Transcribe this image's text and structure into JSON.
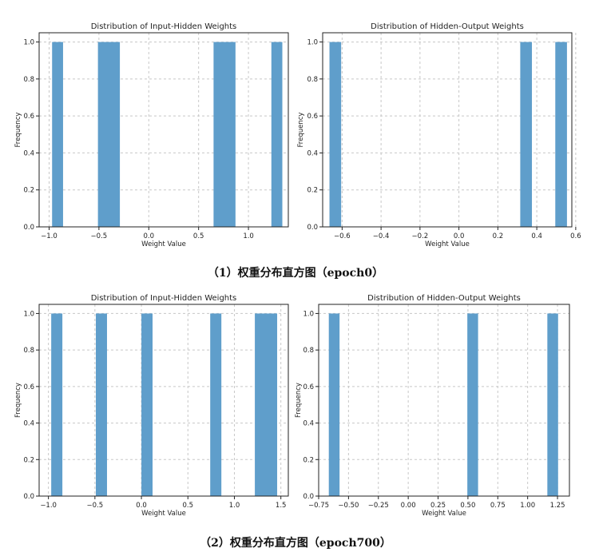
{
  "captions": {
    "top": "（1）权重分布直方图（epoch0）",
    "bottom": "（2）权重分布直方图（epoch700）"
  },
  "colors": {
    "bar": "#5f9ecb",
    "grid": "#c8c8c8",
    "axis": "#222222"
  },
  "chart_data": [
    {
      "id": "epoch0-input-hidden",
      "type": "bar",
      "title": "Distribution of Input-Hidden Weights",
      "xlabel": "Weight Value",
      "ylabel": "Frequency",
      "xlim": [
        -1.1,
        1.4
      ],
      "ylim": [
        0,
        1.05
      ],
      "xticks": [
        -1.0,
        -0.5,
        0.0,
        0.5,
        1.0
      ],
      "xtick_labels": [
        "−1.0",
        "−0.5",
        "0.0",
        "0.5",
        "1.0"
      ],
      "yticks": [
        0,
        0.2,
        0.4,
        0.6,
        0.8,
        1.0
      ],
      "ytick_labels": [
        "0.0",
        "0.2",
        "0.4",
        "0.6",
        "0.8",
        "1.0"
      ],
      "grid": true,
      "bins": [
        {
          "x0": -0.97,
          "x1": -0.86,
          "count": 1
        },
        {
          "x0": -0.51,
          "x1": -0.29,
          "count": 1
        },
        {
          "x0": 0.65,
          "x1": 0.87,
          "count": 1
        },
        {
          "x0": 1.23,
          "x1": 1.34,
          "count": 1
        }
      ]
    },
    {
      "id": "epoch0-hidden-output",
      "type": "bar",
      "title": "Distribution of Hidden-Output Weights",
      "xlabel": "Weight Value",
      "ylabel": "Frequency",
      "xlim": [
        -0.7,
        0.58
      ],
      "ylim": [
        0,
        1.05
      ],
      "xticks": [
        -0.6,
        -0.4,
        -0.2,
        0.0,
        0.2,
        0.4,
        0.6
      ],
      "xtick_labels": [
        "−0.6",
        "−0.4",
        "−0.2",
        "0.0",
        "0.2",
        "0.4",
        "0.6"
      ],
      "yticks": [
        0,
        0.2,
        0.4,
        0.6,
        0.8,
        1.0
      ],
      "ytick_labels": [
        "0.0",
        "0.2",
        "0.4",
        "0.6",
        "0.8",
        "1.0"
      ],
      "grid": true,
      "bins": [
        {
          "x0": -0.665,
          "x1": -0.605,
          "count": 1
        },
        {
          "x0": 0.315,
          "x1": 0.375,
          "count": 1
        },
        {
          "x0": 0.495,
          "x1": 0.555,
          "count": 1
        }
      ]
    },
    {
      "id": "epoch700-input-hidden",
      "type": "bar",
      "title": "Distribution of Input-Hidden Weights",
      "xlabel": "Weight Value",
      "ylabel": "Frequency",
      "xlim": [
        -1.1,
        1.58
      ],
      "ylim": [
        0,
        1.05
      ],
      "xticks": [
        -1.0,
        -0.5,
        0.0,
        0.5,
        1.0,
        1.5
      ],
      "xtick_labels": [
        "−1.0",
        "−0.5",
        "0.0",
        "0.5",
        "1.0",
        "1.5"
      ],
      "yticks": [
        0,
        0.2,
        0.4,
        0.6,
        0.8,
        1.0
      ],
      "ytick_labels": [
        "0.0",
        "0.2",
        "0.4",
        "0.6",
        "0.8",
        "1.0"
      ],
      "grid": true,
      "bins": [
        {
          "x0": -0.97,
          "x1": -0.85,
          "count": 1
        },
        {
          "x0": -0.49,
          "x1": -0.37,
          "count": 1
        },
        {
          "x0": 0.0,
          "x1": 0.12,
          "count": 1
        },
        {
          "x0": 0.74,
          "x1": 0.86,
          "count": 1
        },
        {
          "x0": 1.22,
          "x1": 1.46,
          "count": 1
        }
      ]
    },
    {
      "id": "epoch700-hidden-output",
      "type": "bar",
      "title": "Distribution of Hidden-Output Weights",
      "xlabel": "Weight Value",
      "ylabel": "Frequency",
      "xlim": [
        -0.75,
        1.35
      ],
      "ylim": [
        0,
        1.05
      ],
      "xticks": [
        -0.75,
        -0.5,
        -0.25,
        0.0,
        0.25,
        0.5,
        0.75,
        1.0,
        1.25
      ],
      "xtick_labels": [
        "−0.75",
        "−0.50",
        "−0.25",
        "0.00",
        "0.25",
        "0.50",
        "0.75",
        "1.00",
        "1.25"
      ],
      "yticks": [
        0,
        0.2,
        0.4,
        0.6,
        0.8,
        1.0
      ],
      "ytick_labels": [
        "0.0",
        "0.2",
        "0.4",
        "0.6",
        "0.8",
        "1.0"
      ],
      "grid": true,
      "bins": [
        {
          "x0": -0.665,
          "x1": -0.575,
          "count": 1
        },
        {
          "x0": 0.495,
          "x1": 0.585,
          "count": 1
        },
        {
          "x0": 1.165,
          "x1": 1.255,
          "count": 1
        }
      ]
    }
  ]
}
